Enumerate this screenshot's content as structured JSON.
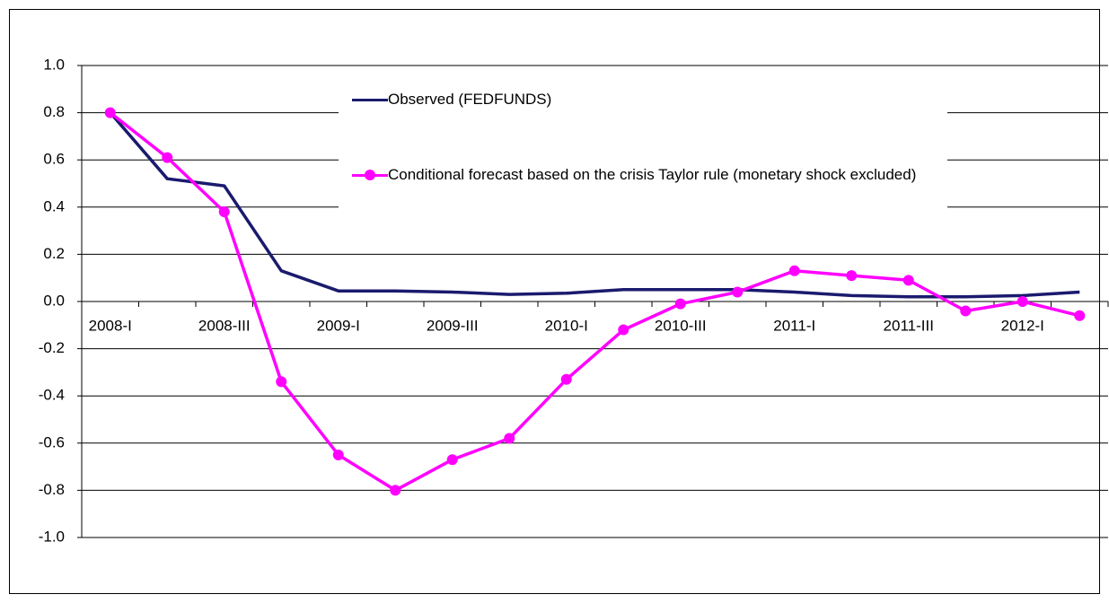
{
  "chart_data": {
    "type": "line",
    "categories": [
      "2008-I",
      null,
      "2008-III",
      null,
      "2009-I",
      null,
      "2009-III",
      null,
      "2010-I",
      null,
      "2010-III",
      null,
      "2011-I",
      null,
      "2011-III",
      null,
      "2012-I",
      null
    ],
    "series": [
      {
        "name": "Observed (FEDFUNDS)",
        "color": "#1a1a6e",
        "marker": false,
        "values": [
          0.8,
          0.52,
          0.49,
          0.13,
          0.045,
          0.045,
          0.04,
          0.03,
          0.035,
          0.05,
          0.05,
          0.05,
          0.04,
          0.025,
          0.02,
          0.02,
          0.025,
          0.04
        ]
      },
      {
        "name": "Conditional forecast based on the crisis Taylor rule (monetary shock excluded)",
        "color": "#ff00ff",
        "marker": true,
        "values": [
          0.8,
          0.61,
          0.38,
          -0.34,
          -0.65,
          -0.8,
          -0.67,
          -0.58,
          -0.33,
          -0.12,
          -0.01,
          0.04,
          0.13,
          0.11,
          0.09,
          -0.04,
          0.0,
          -0.06
        ]
      }
    ],
    "ylim": [
      -1.0,
      1.0
    ],
    "yticks": [
      {
        "value": -1.0,
        "label": "-1.0"
      },
      -0.8,
      -0.6,
      -0.4,
      -0.2,
      {
        "value": 0,
        "label": "0.0"
      },
      0.2,
      0.4,
      0.6,
      0.8,
      {
        "value": 1.0,
        "label": "1.0"
      }
    ],
    "grid": true,
    "legend": "top"
  }
}
